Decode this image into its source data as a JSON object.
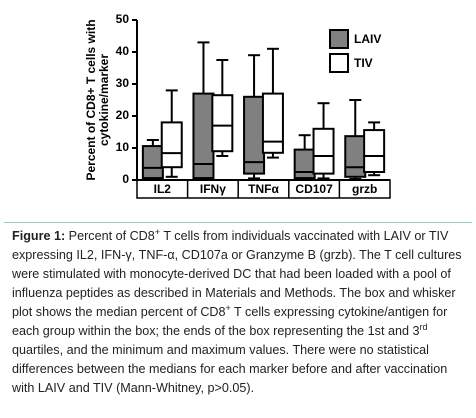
{
  "chart_data": {
    "type": "box",
    "ylabel": [
      "Percent of CD8+ T cells with",
      "cytokine/marker"
    ],
    "categories": [
      "IL2",
      "IFNγ",
      "TNFα",
      "CD107",
      "grzb"
    ],
    "series": [
      {
        "name": "LAIV",
        "color": "#808080",
        "min": [
          0.3,
          0,
          0.5,
          0.3,
          0.3
        ],
        "q1": [
          0.6,
          0.6,
          2,
          0.6,
          1
        ],
        "median": [
          3.8,
          5,
          5.6,
          2.5,
          4
        ],
        "q3": [
          10.6,
          27,
          26,
          9.5,
          13.7
        ],
        "max": [
          12.5,
          43,
          39,
          14,
          25
        ]
      },
      {
        "name": "TIV",
        "color": "#ffffff",
        "min": [
          1,
          7.5,
          7,
          0.5,
          1.5
        ],
        "q1": [
          4,
          9,
          8.5,
          2,
          2.5
        ],
        "median": [
          8.4,
          17,
          12,
          7.5,
          7.5
        ],
        "q3": [
          18,
          26.5,
          27,
          16,
          15.6
        ],
        "max": [
          28,
          37.5,
          41,
          24,
          18
        ]
      }
    ],
    "ylim": [
      0,
      50
    ],
    "yticks": [
      0,
      10,
      20,
      30,
      40,
      50
    ]
  },
  "caption": {
    "label": "Figure 1:",
    "parts": [
      " Percent of CD8",
      "+",
      " T cells from individuals vaccinated with LAIV or TIV expressing IL2, IFN-γ, TNF-α, CD107a or Granzyme B (grzb). The T cell cultures were stimulated with monocyte-derived DC that had been loaded with a pool of influenza peptides as described in Materials and Methods. The box and whisker plot shows the median percent of CD8",
      "+",
      " T cells expressing cytokine/antigen for each group within the box; the ends of the box representing the 1st and 3",
      "rd",
      " quartiles, and the minimum and maximum values. There were no statistical differences between the medians for each marker before and after vaccination with LAIV and TIV (Mann-Whitney, p>0.05)."
    ]
  }
}
